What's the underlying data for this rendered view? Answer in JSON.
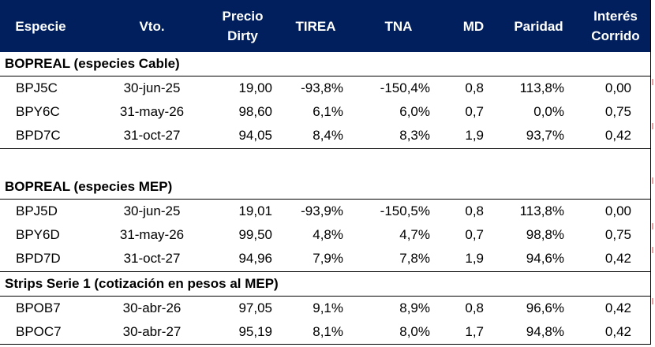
{
  "headers": {
    "especie": "Especie",
    "vto": "Vto.",
    "precio_line1": "Precio",
    "precio_line2": "Dirty",
    "tirea": "TIREA",
    "tna": "TNA",
    "md": "MD",
    "paridad": "Paridad",
    "interes_line1": "Interés",
    "interes_line2": "Corrido"
  },
  "sections": [
    {
      "title": "BOPREAL (especies Cable)",
      "rows": [
        {
          "especie": "BPJ5C",
          "vto": "30-jun-25",
          "precio": "19,00",
          "tirea": "-93,8%",
          "tna": "-150,4%",
          "md": "0,8",
          "paridad": "113,8%",
          "interes": "0,00"
        },
        {
          "especie": "BPY6C",
          "vto": "31-may-26",
          "precio": "98,60",
          "tirea": "6,1%",
          "tna": "6,0%",
          "md": "0,7",
          "paridad": "0,0%",
          "interes": "0,75"
        },
        {
          "especie": "BPD7C",
          "vto": "31-oct-27",
          "precio": "94,05",
          "tirea": "8,4%",
          "tna": "8,3%",
          "md": "1,9",
          "paridad": "93,7%",
          "interes": "0,42"
        }
      ]
    },
    {
      "title": "BOPREAL (especies MEP)",
      "rows": [
        {
          "especie": "BPJ5D",
          "vto": "30-jun-25",
          "precio": "19,01",
          "tirea": "-93,9%",
          "tna": "-150,5%",
          "md": "0,8",
          "paridad": "113,8%",
          "interes": "0,00"
        },
        {
          "especie": "BPY6D",
          "vto": "31-may-26",
          "precio": "99,50",
          "tirea": "4,8%",
          "tna": "4,7%",
          "md": "0,7",
          "paridad": "98,8%",
          "interes": "0,75"
        },
        {
          "especie": "BPD7D",
          "vto": "31-oct-27",
          "precio": "94,96",
          "tirea": "7,9%",
          "tna": "7,8%",
          "md": "1,9",
          "paridad": "94,6%",
          "interes": "0,42"
        }
      ]
    },
    {
      "title": "Strips Serie 1 (cotización en pesos al MEP)",
      "rows": [
        {
          "especie": "BPOB7",
          "vto": "30-abr-26",
          "precio": "97,05",
          "tirea": "9,1%",
          "tna": "8,9%",
          "md": "0,8",
          "paridad": "96,6%",
          "interes": "0,42"
        },
        {
          "especie": "BPOC7",
          "vto": "30-abr-27",
          "precio": "95,19",
          "tirea": "8,1%",
          "tna": "8,0%",
          "md": "1,7",
          "paridad": "94,8%",
          "interes": "0,42"
        }
      ]
    }
  ],
  "colors": {
    "header_bg": "#001f5c",
    "header_text": "#ffffff",
    "accent_tick": "#e8a0a0"
  }
}
